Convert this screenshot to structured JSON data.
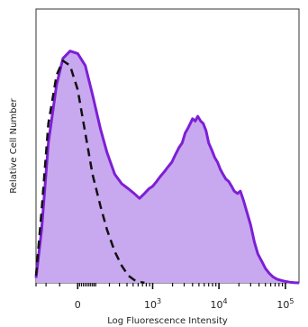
{
  "chart_data": {
    "type": "area",
    "title": "",
    "xlabel": "Log Fluorescence Intensity",
    "ylabel": "Relative Cell Number",
    "xscale": "biexponential",
    "xlim": [
      -300,
      160000
    ],
    "ylim": [
      0,
      1
    ],
    "grid": false,
    "legend": "none",
    "x_ticks": [
      {
        "value": 0,
        "base": "0",
        "exp": ""
      },
      {
        "value": 1000,
        "base": "10",
        "exp": "3"
      },
      {
        "value": 10000,
        "base": "10",
        "exp": "4"
      },
      {
        "value": 100000,
        "base": "10",
        "exp": "5"
      }
    ],
    "series": [
      {
        "style": "filled",
        "fill": "#c8a8ef",
        "stroke": "#7d1fd6",
        "x": [
          -300,
          -240,
          -180,
          -120,
          -80,
          -40,
          0,
          40,
          80,
          130,
          180,
          250,
          330,
          420,
          520,
          630,
          750,
          880,
          1000,
          1150,
          1300,
          1500,
          1700,
          1950,
          2200,
          2500,
          2800,
          3100,
          3400,
          3700,
          4000,
          4400,
          4800,
          5300,
          5800,
          6400,
          7000,
          7800,
          8600,
          9500,
          10500,
          11500,
          12700,
          14000,
          15500,
          17000,
          19000,
          21000,
          23500,
          26500,
          30000,
          34000,
          38500,
          44000,
          50000,
          57000,
          65000,
          75000,
          87000,
          100000,
          115000,
          135000,
          160000
        ],
        "y": [
          0.02,
          0.22,
          0.58,
          0.82,
          0.93,
          0.96,
          0.95,
          0.9,
          0.78,
          0.64,
          0.54,
          0.45,
          0.41,
          0.39,
          0.37,
          0.35,
          0.37,
          0.39,
          0.4,
          0.42,
          0.44,
          0.46,
          0.48,
          0.5,
          0.53,
          0.56,
          0.58,
          0.62,
          0.64,
          0.66,
          0.68,
          0.67,
          0.69,
          0.67,
          0.66,
          0.63,
          0.58,
          0.55,
          0.52,
          0.5,
          0.47,
          0.45,
          0.43,
          0.42,
          0.4,
          0.38,
          0.37,
          0.38,
          0.34,
          0.29,
          0.24,
          0.17,
          0.12,
          0.09,
          0.06,
          0.04,
          0.025,
          0.015,
          0.01,
          0.006,
          0.003,
          0.001,
          0.0
        ]
      },
      {
        "style": "dashed",
        "stroke": "#111111",
        "x": [
          -300,
          -240,
          -180,
          -120,
          -80,
          -40,
          0,
          40,
          80,
          130,
          180,
          250,
          330,
          420,
          520,
          630,
          750
        ],
        "y": [
          0.03,
          0.3,
          0.66,
          0.86,
          0.92,
          0.9,
          0.8,
          0.62,
          0.45,
          0.32,
          0.22,
          0.13,
          0.07,
          0.03,
          0.012,
          0.004,
          0.0
        ]
      }
    ]
  }
}
